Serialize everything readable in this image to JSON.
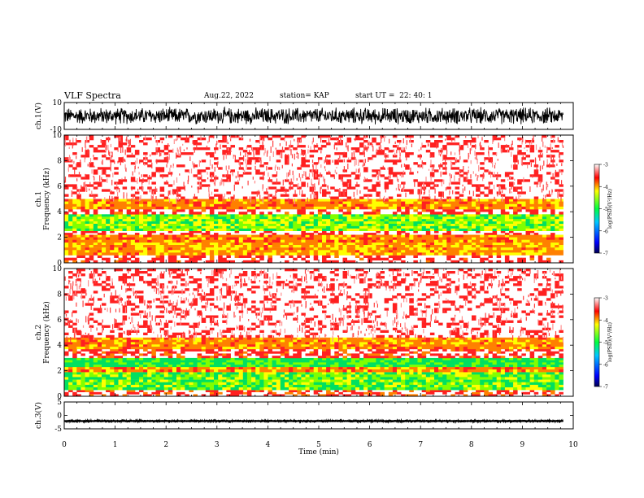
{
  "header": {
    "title": "VLF Spectra",
    "date": "Aug.22, 2022",
    "station": "station= KAP",
    "start_ut": "start UT =  22: 40: 1"
  },
  "colors": {
    "line": "#000000",
    "spectrogram_low": "#00c8ff",
    "spectrogram_mid": "#ffff00",
    "spectrogram_high": "#ff0000",
    "background": "#ffffff"
  },
  "chart_data": [
    {
      "type": "line",
      "name": "waveform-ch1",
      "ylabel": "ch.1(V)",
      "ylim": [
        -10,
        10
      ],
      "yticks": [
        "10",
        "-10"
      ],
      "xlim": [
        0,
        10
      ],
      "data_extent_min": 9.8,
      "description_values": {
        "amplitude_V": 7
      }
    },
    {
      "type": "heatmap",
      "name": "spectrogram-ch1",
      "ylabel": [
        "ch.1",
        "Frequency (kHz)"
      ],
      "ylim": [
        0,
        10
      ],
      "yticks": [
        "0",
        "2",
        "4",
        "6",
        "8",
        "10"
      ],
      "xlim": [
        0,
        10
      ],
      "data_extent_min": 9.8,
      "bands_khz": [
        {
          "range": [
            0,
            0.6
          ],
          "level": -3.2
        },
        {
          "range": [
            0.6,
            1.6
          ],
          "level": -4.0
        },
        {
          "range": [
            1.6,
            2.2
          ],
          "level": -3.8
        },
        {
          "range": [
            2.2,
            2.5
          ],
          "level": -3.1
        },
        {
          "range": [
            2.5,
            3.8
          ],
          "level": -4.6
        },
        {
          "range": [
            3.8,
            4.2
          ],
          "level": -3.2
        },
        {
          "range": [
            4.2,
            5.0
          ],
          "level": -3.9
        },
        {
          "range": [
            5.0,
            10.0
          ],
          "level": -3.0
        }
      ],
      "colorbar": {
        "label": "log(PSD)(V²/Hz)",
        "range": [
          -7,
          -3
        ],
        "ticks": [
          "-3",
          "-4",
          "-5",
          "-6",
          "-7"
        ]
      }
    },
    {
      "type": "heatmap",
      "name": "spectrogram-ch2",
      "ylabel": [
        "ch.2",
        "Frequency (kHz)"
      ],
      "ylim": [
        0,
        10
      ],
      "yticks": [
        "0",
        "2",
        "4",
        "6",
        "8",
        "10"
      ],
      "xlim": [
        0,
        10
      ],
      "data_extent_min": 9.8,
      "bands_khz": [
        {
          "range": [
            0,
            0.5
          ],
          "level": -3.3
        },
        {
          "range": [
            0.5,
            1.9
          ],
          "level": -4.7
        },
        {
          "range": [
            1.9,
            2.3
          ],
          "level": -3.9
        },
        {
          "range": [
            2.3,
            3.0
          ],
          "level": -4.9
        },
        {
          "range": [
            3.0,
            3.7
          ],
          "level": -3.3
        },
        {
          "range": [
            3.7,
            4.6
          ],
          "level": -3.9
        },
        {
          "range": [
            4.6,
            10.0
          ],
          "level": -3.0
        }
      ],
      "colorbar": {
        "label": "log(PSD)(V²/Hz)",
        "range": [
          -7,
          -3
        ],
        "ticks": [
          "-3",
          "-4",
          "-5",
          "-6",
          "-7"
        ]
      }
    },
    {
      "type": "line",
      "name": "waveform-ch3",
      "ylabel": "ch.3(V)",
      "ylim": [
        -5,
        5
      ],
      "yticks": [
        "5",
        "0",
        "-5"
      ],
      "xlim": [
        0,
        10
      ],
      "data_extent_min": 9.8,
      "description_values": {
        "offset_V": -2.1,
        "amplitude_V": 0.4
      }
    }
  ],
  "xaxis": {
    "label": "Time (min)",
    "ticks": [
      "0",
      "1",
      "2",
      "3",
      "4",
      "5",
      "6",
      "7",
      "8",
      "9",
      "10"
    ]
  }
}
